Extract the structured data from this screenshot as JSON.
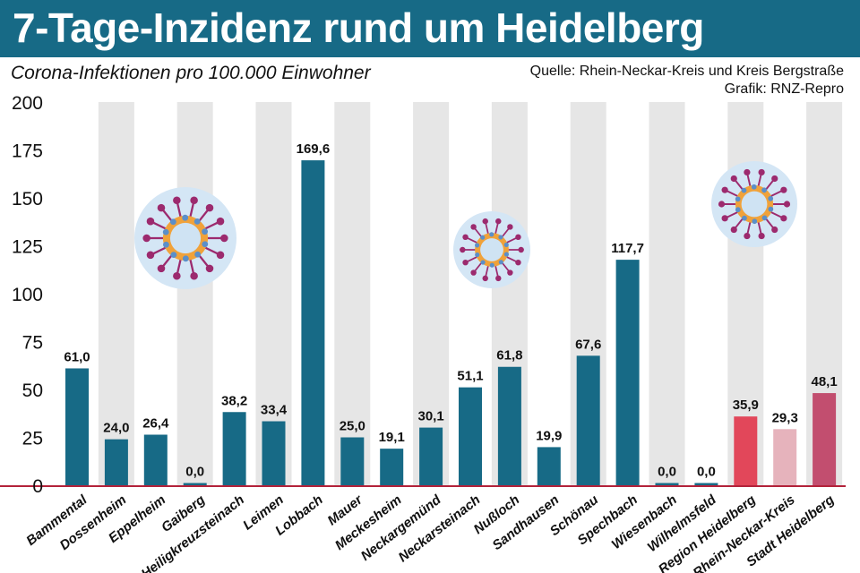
{
  "header": {
    "title": "7-Tage-Inzidenz rund um Heidelberg",
    "subtitle": "Corona-Infektionen pro 100.000 Einwohner",
    "source": "Quelle: Rhein-Neckar-Kreis und Kreis Bergstraße",
    "credit": "Grafik: RNZ-Repro"
  },
  "colors": {
    "header_bg": "#176a86",
    "bar_default": "#176a86",
    "bar_region": "#e2475a",
    "bar_kreis": "#e6b3bc",
    "bar_stadt": "#c24e6f",
    "stripe": "#e6e6e6",
    "baseline": "#b3223a",
    "virus_halo": "#d4e6f5",
    "virus_core": "#f0a23a",
    "virus_spike": "#9c2a6e",
    "virus_blue": "#5b8fc9"
  },
  "icons": [
    "virus-icon",
    "virus-icon",
    "virus-icon"
  ],
  "chart_data": {
    "type": "bar",
    "title": "7-Tage-Inzidenz rund um Heidelberg",
    "subtitle": "Corona-Infektionen pro 100.000 Einwohner",
    "categories": [
      "Bammental",
      "Dossenheim",
      "Eppelheim",
      "Gaiberg",
      "Heiligkreuzsteinach",
      "Leimen",
      "Lobbach",
      "Mauer",
      "Meckesheim",
      "Neckargemünd",
      "Neckarsteinach",
      "Nußloch",
      "Sandhausen",
      "Schönau",
      "Spechbach",
      "Wiesenbach",
      "Wilhelmsfeld",
      "Region Heidelberg",
      "Rhein-Neckar-Kreis",
      "Stadt Heidelberg"
    ],
    "values": [
      61.0,
      24.0,
      26.4,
      0.0,
      38.2,
      33.4,
      169.6,
      25.0,
      19.1,
      30.1,
      51.1,
      61.8,
      19.9,
      67.6,
      117.7,
      0.0,
      0.0,
      35.9,
      29.3,
      48.1
    ],
    "value_labels": [
      "61,0",
      "24,0",
      "26,4",
      "0,0",
      "38,2",
      "33,4",
      "169,6",
      "25,0",
      "19,1",
      "30,1",
      "51,1",
      "61,8",
      "19,9",
      "67,6",
      "117,7",
      "0,0",
      "0,0",
      "35,9",
      "29,3",
      "48,1"
    ],
    "bar_colors": [
      "#176a86",
      "#176a86",
      "#176a86",
      "#176a86",
      "#176a86",
      "#176a86",
      "#176a86",
      "#176a86",
      "#176a86",
      "#176a86",
      "#176a86",
      "#176a86",
      "#176a86",
      "#176a86",
      "#176a86",
      "#176a86",
      "#176a86",
      "#e2475a",
      "#e6b3bc",
      "#c24e6f"
    ],
    "ylim": [
      0,
      200
    ],
    "yticks": [
      0,
      25,
      50,
      75,
      100,
      125,
      150,
      175,
      200
    ],
    "grid": "alternating vertical stripes",
    "legend": "none"
  }
}
